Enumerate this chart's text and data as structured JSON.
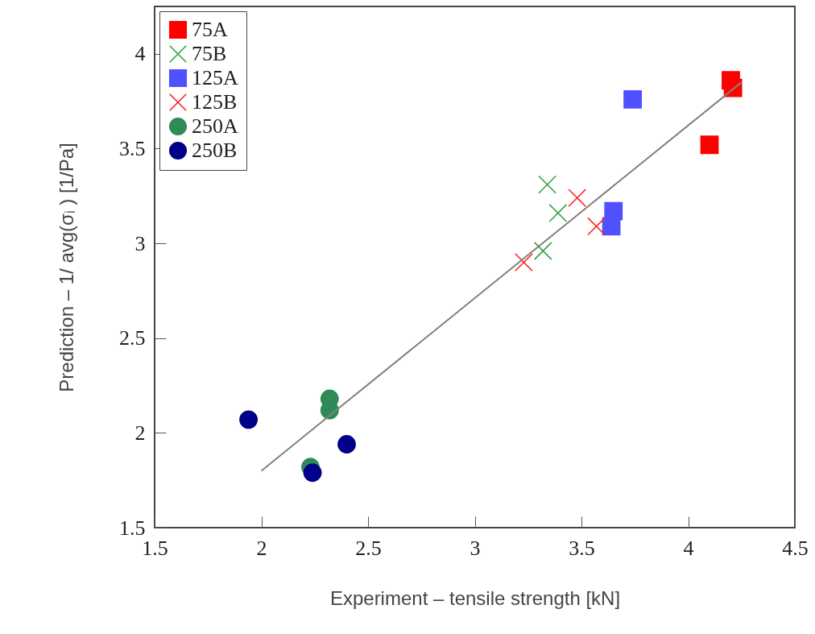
{
  "chart_data": {
    "type": "scatter",
    "xlabel": "Experiment – tensile strength [kN]",
    "ylabel": "Prediction – 1/ avg(σᵢ )  [1/Pa]",
    "xlim": [
      1.5,
      4.5
    ],
    "ylim": [
      1.5,
      4.25
    ],
    "xticks": [
      1.5,
      2,
      2.5,
      3,
      3.5,
      4,
      4.5
    ],
    "yticks": [
      1.5,
      2,
      2.5,
      3,
      3.5,
      4
    ],
    "legend": "top left",
    "series": [
      {
        "name": "75A",
        "marker": "square",
        "color": "#ff0000",
        "x": [
          4.2,
          4.21,
          4.1
        ],
        "values": [
          3.86,
          3.82,
          3.52
        ]
      },
      {
        "name": "75B",
        "marker": "cross",
        "color": "#33a040",
        "x": [
          3.34,
          3.39,
          3.32
        ],
        "values": [
          3.31,
          3.16,
          2.96
        ]
      },
      {
        "name": "125A",
        "marker": "square",
        "color": "#5050ff",
        "x": [
          3.74,
          3.65,
          3.64
        ],
        "values": [
          3.76,
          3.17,
          3.09
        ]
      },
      {
        "name": "125B",
        "marker": "cross",
        "color": "#ff2020",
        "x": [
          3.48,
          3.57,
          3.23
        ],
        "values": [
          3.24,
          3.09,
          2.9
        ]
      },
      {
        "name": "250A",
        "marker": "circle",
        "color": "#2e8b57",
        "x": [
          2.32,
          2.32,
          2.23
        ],
        "values": [
          2.18,
          2.12,
          1.82
        ]
      },
      {
        "name": "250B",
        "marker": "circle",
        "color": "#000088",
        "x": [
          1.94,
          2.4,
          2.24
        ],
        "values": [
          2.07,
          1.94,
          1.79
        ]
      },
      {
        "type": "line",
        "color": "#808080",
        "x": [
          2,
          4.25
        ],
        "values": [
          1.8,
          3.85
        ]
      }
    ]
  }
}
